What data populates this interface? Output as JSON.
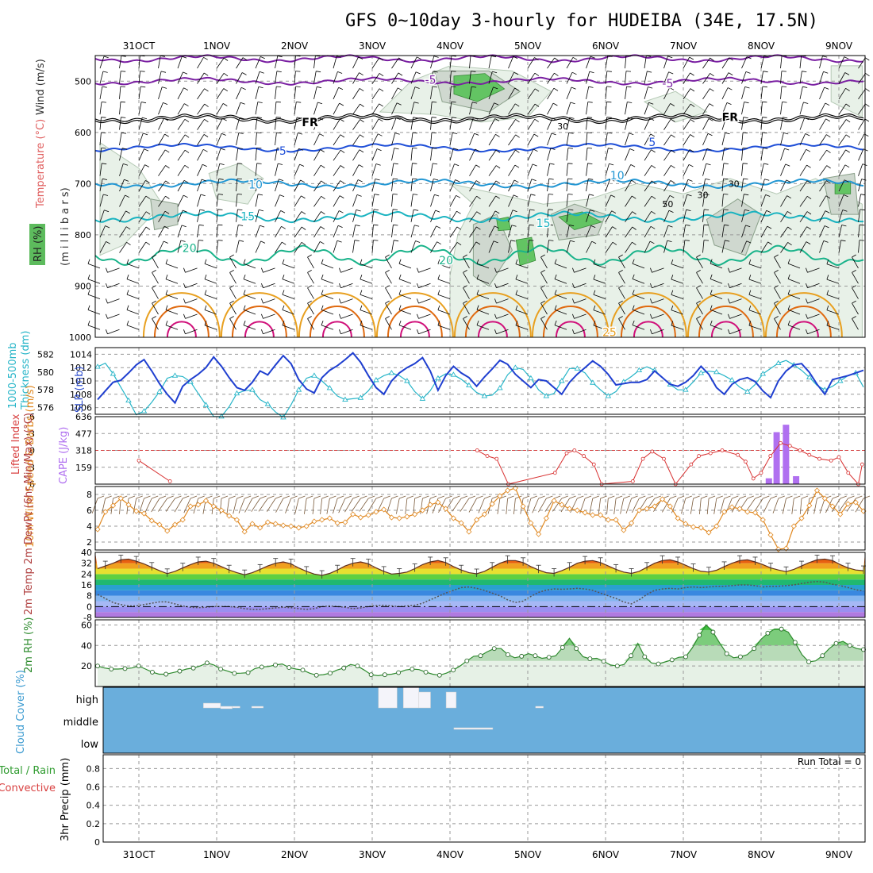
{
  "title": "GFS 0~10day 3-hourly for HUDEIBA (34E, 17.5N)",
  "dates": [
    "31OCT",
    "1NOV",
    "2NOV",
    "3NOV",
    "4NOV",
    "5NOV",
    "6NOV",
    "7NOV",
    "8NOV",
    "9NOV"
  ],
  "colors": {
    "rh_green": "#4caf50",
    "rh_grey": "#cfd8cf",
    "temp_purple": "#7a1fa2",
    "temp_blue": "#1f4fd8",
    "temp_lblue": "#2196d3",
    "temp_cyan": "#19b3c0",
    "temp_green": "#19b38a",
    "temp_orange": "#e8a020",
    "temp_dorange": "#e06a10",
    "temp_magenta": "#d0107a",
    "thickness": "#26b5c8",
    "slp": "#1f3fd0",
    "lifted": "#d83030",
    "cape": "#b070f0",
    "wind10": "#e08820",
    "rh2m": "#2e8b2e",
    "cloud": "#6aaedc"
  },
  "chart_data": [
    {
      "type": "contour",
      "name": "upper-air",
      "ylabels": [
        "Temperature (°C)",
        "Wind (m/s)",
        "RH (%)",
        "(m i l l i b a r s)"
      ],
      "yticks": [
        500,
        600,
        700,
        800,
        900,
        1000
      ],
      "ylim": [
        1000,
        450
      ],
      "isotherm_labels": [
        {
          "text": "-5",
          "day": 3.75,
          "p": 497
        },
        {
          "text": "-5",
          "day": 6.8,
          "p": 504
        },
        {
          "text": "FR",
          "day": 2.2,
          "p": 580
        },
        {
          "text": "FR",
          "day": 7.6,
          "p": 570
        },
        {
          "text": "5",
          "day": 1.85,
          "p": 636
        },
        {
          "text": "5",
          "day": 6.6,
          "p": 619
        },
        {
          "text": "10",
          "day": 6.15,
          "p": 684
        },
        {
          "text": "10",
          "day": 1.5,
          "p": 702
        },
        {
          "text": "15",
          "day": 1.4,
          "p": 764
        },
        {
          "text": "15",
          "day": 5.2,
          "p": 777
        },
        {
          "text": "20",
          "day": 0.65,
          "p": 826
        },
        {
          "text": "20",
          "day": 3.95,
          "p": 850
        },
        {
          "text": "25",
          "day": 6.05,
          "p": 990
        }
      ],
      "rh_labels": [
        {
          "text": "30",
          "day": 5.45,
          "p": 588
        },
        {
          "text": "50",
          "day": 6.8,
          "p": 740
        },
        {
          "text": "30",
          "day": 7.25,
          "p": 722
        },
        {
          "text": "30",
          "day": 7.65,
          "p": 700
        }
      ]
    },
    {
      "type": "line",
      "name": "thickness-slp",
      "ylabel_left": "Thickness (dm)",
      "ylabel_left2": "1000-500mb",
      "ylabel_right": "SLP (mb)",
      "yticks_left": [
        576,
        578,
        580,
        582
      ],
      "yticks_right": [
        1006,
        1008,
        1010,
        1012,
        1014
      ],
      "ylim_right": [
        1005,
        1015
      ],
      "series": [
        {
          "name": "SLP",
          "values": [
            1007.2,
            1008.5,
            1009.8,
            1010.1,
            1011.2,
            1012.4,
            1013.2,
            1011.5,
            1009.6,
            1008.0,
            1006.7,
            1009.2,
            1010.2,
            1011.0,
            1012.0,
            1013.6,
            1012.2,
            1010.5,
            1009.0,
            1008.6,
            1009.8,
            1011.5,
            1010.9,
            1012.4,
            1013.8,
            1012.6,
            1010.2,
            1008.8,
            1008.2,
            1010.5,
            1011.6,
            1012.3,
            1013.2,
            1014.2,
            1012.8,
            1010.8,
            1009.0,
            1008.0,
            1010.0,
            1011.2,
            1012.0,
            1012.6,
            1013.5,
            1011.5,
            1008.6,
            1010.8,
            1012.2,
            1011.2,
            1010.5,
            1009.2,
            1010.6,
            1011.8,
            1013.1,
            1012.5,
            1011.0,
            1010.0,
            1009.0,
            1010.2,
            1010.0,
            1009.0,
            1008.0,
            1009.8,
            1011.0,
            1012.0,
            1013.0,
            1012.2,
            1011.0,
            1009.4,
            1009.6,
            1009.8,
            1009.8,
            1010.2,
            1011.5,
            1010.5,
            1009.5,
            1009.2,
            1009.8,
            1010.8,
            1012.2,
            1011.0,
            1009.0,
            1008.0,
            1009.5,
            1010.2,
            1010.5,
            1009.9,
            1008.5,
            1007.5,
            1010.0,
            1011.5,
            1012.4,
            1012.6,
            1011.3,
            1009.5,
            1008.0,
            1010.2,
            1010.5,
            1010.8,
            1011.2,
            1011.6
          ]
        },
        {
          "name": "Thickness",
          "values": [
            580.6,
            581.0,
            579.8,
            578.3,
            576.8,
            575.2,
            575.6,
            576.6,
            577.8,
            579.3,
            579.6,
            579.5,
            578.9,
            577.6,
            576.3,
            575.0,
            575.0,
            576.1,
            577.6,
            577.9,
            578.0,
            576.9,
            576.4,
            575.5,
            574.9,
            576.3,
            578.0,
            579.3,
            579.6,
            579.0,
            578.2,
            577.3,
            576.9,
            577.0,
            577.1,
            577.9,
            579.1,
            579.6,
            579.9,
            579.6,
            579.0,
            577.8,
            577.0,
            577.9,
            579.3,
            579.8,
            579.7,
            579.2,
            578.5,
            577.7,
            577.3,
            577.4,
            578.2,
            579.7,
            580.5,
            580.3,
            579.3,
            578.0,
            577.3,
            577.6,
            579.0,
            580.4,
            580.4,
            579.9,
            578.8,
            578.0,
            577.3,
            577.8,
            578.9,
            579.5,
            580.2,
            580.6,
            580.2,
            579.4,
            578.6,
            578.0,
            578.0,
            578.9,
            579.9,
            580.1,
            580.0,
            579.6,
            579.1,
            578.3,
            577.8,
            578.6,
            579.8,
            580.4,
            581.0,
            581.3,
            580.8,
            580.2,
            579.4,
            578.5,
            578.0,
            578.4,
            579.0,
            579.6,
            579.9,
            578.3
          ]
        }
      ]
    },
    {
      "type": "bar-line",
      "name": "lifted-index-cape",
      "ylabel_left": "Lifted Index",
      "ylabel_right": "CAPE (J/kg)",
      "yticks_left": [
        -6,
        -3,
        0,
        3,
        6
      ],
      "yticks_right": [
        159,
        318,
        477,
        636
      ],
      "ylim_left": [
        6,
        -6
      ],
      "ylim_right": [
        0,
        636
      ],
      "lifted_index": [
        [
          0,
          1.8
        ],
        [
          0.4,
          5.5
        ],
        [
          4.35,
          0.0
        ],
        [
          4.48,
          1.0
        ],
        [
          4.6,
          1.5
        ],
        [
          4.75,
          6.0
        ],
        [
          5.35,
          4.0
        ],
        [
          5.5,
          0.5
        ],
        [
          5.6,
          0.0
        ],
        [
          5.72,
          1.0
        ],
        [
          5.85,
          2.5
        ],
        [
          5.95,
          6.0
        ],
        [
          6.35,
          5.5
        ],
        [
          6.48,
          1.5
        ],
        [
          6.6,
          0.2
        ],
        [
          6.75,
          1.5
        ],
        [
          6.9,
          6.0
        ],
        [
          7.1,
          2.5
        ],
        [
          7.2,
          1.0
        ],
        [
          7.35,
          0.5
        ],
        [
          7.5,
          0.0
        ],
        [
          7.7,
          0.8
        ],
        [
          7.8,
          2.0
        ],
        [
          7.9,
          5.0
        ],
        [
          8.0,
          4.0
        ],
        [
          8.12,
          1.0
        ],
        [
          8.25,
          -1.3
        ],
        [
          8.37,
          -0.8
        ],
        [
          8.5,
          0.0
        ],
        [
          8.62,
          0.8
        ],
        [
          8.75,
          1.5
        ],
        [
          8.9,
          1.8
        ],
        [
          9.0,
          1.2
        ],
        [
          9.12,
          4.0
        ],
        [
          9.25,
          6.0
        ],
        [
          9.3,
          2.5
        ]
      ],
      "cape_bars": [
        [
          8.1,
          55
        ],
        [
          8.2,
          490
        ],
        [
          8.32,
          560
        ],
        [
          8.45,
          75
        ]
      ]
    },
    {
      "type": "line",
      "name": "wind10m",
      "ylabel": "10m Wind Speed & Barbs (m/s)",
      "yticks": [
        2,
        4,
        6,
        8
      ],
      "ylim": [
        1,
        9
      ],
      "values": [
        3.6,
        5.8,
        6.6,
        7.5,
        6.7,
        5.9,
        5.6,
        4.7,
        4.2,
        3.4,
        4.2,
        4.8,
        6.5,
        6.7,
        7.2,
        6.5,
        6.0,
        5.3,
        4.8,
        3.3,
        4.3,
        3.8,
        4.5,
        4.3,
        4.1,
        4.0,
        3.8,
        4.0,
        4.6,
        4.8,
        5.0,
        4.4,
        4.5,
        5.5,
        5.1,
        5.4,
        5.8,
        6.1,
        5.1,
        5.0,
        5.2,
        5.5,
        6.0,
        6.7,
        7.0,
        6.2,
        5.0,
        4.4,
        3.3,
        4.8,
        5.5,
        6.8,
        7.8,
        8.5,
        8.8,
        6.5,
        4.4,
        3.0,
        5.0,
        7.2,
        6.7,
        6.2,
        6.0,
        5.7,
        5.4,
        5.4,
        4.8,
        4.8,
        3.5,
        4.4,
        6.0,
        6.2,
        6.5,
        7.4,
        6.5,
        5.0,
        4.3,
        3.9,
        3.8,
        3.2,
        4.0,
        5.8,
        6.4,
        6.2,
        5.8,
        5.7,
        4.8,
        2.9,
        1.1,
        1.2,
        4.0,
        5.0,
        6.6,
        8.5,
        7.5,
        6.5,
        5.5,
        6.8,
        7.0,
        5.9
      ]
    },
    {
      "type": "area",
      "name": "temp2m",
      "ylabel": "2m Temp 2m DewPt (6hr Min/Max) (°C)",
      "yticks": [
        -8,
        0,
        8,
        16,
        24,
        32,
        40
      ],
      "ylim": [
        -8,
        40
      ],
      "temperature": [
        28,
        30,
        32,
        34.5,
        35,
        33.5,
        31.5,
        29,
        26.5,
        24.3,
        26,
        28.5,
        31,
        33,
        33.5,
        32,
        29.5,
        27,
        25,
        23.5,
        25,
        27.5,
        30,
        32,
        33,
        31.5,
        28.5,
        26,
        24,
        23,
        24.5,
        27,
        30,
        32,
        33,
        31.5,
        28.5,
        26,
        24,
        24.5,
        25.5,
        28,
        31,
        33,
        34,
        32.5,
        29.5,
        27,
        25,
        24.2,
        26,
        29,
        32,
        34,
        34,
        32.5,
        29.5,
        27,
        25,
        24.5,
        26.5,
        29,
        32,
        33.5,
        34,
        32.5,
        30,
        27.5,
        25.5,
        24.5,
        26,
        29,
        32,
        34,
        34.5,
        33,
        30.5,
        28,
        26,
        25.5,
        26.8,
        29.5,
        32,
        34,
        34.5,
        33,
        31,
        28.5,
        27,
        25.8,
        27.5,
        30,
        32.5,
        34.5,
        35,
        34,
        31,
        28.5,
        27,
        26.5
      ],
      "dewpoint": [
        9,
        6,
        3,
        1.5,
        0.5,
        0.5,
        1.5,
        2.5,
        3.5,
        3.5,
        2,
        0.5,
        -0.5,
        -0.8,
        -0.5,
        0,
        0,
        0,
        -0.5,
        -1.5,
        -2,
        -2,
        -1.5,
        -1,
        -0.5,
        -0.8,
        -1.5,
        -2,
        -1.5,
        0,
        0.5,
        0,
        -0.5,
        -1.5,
        -1,
        0,
        0.8,
        1,
        0.5,
        0,
        0.5,
        1,
        2.5,
        5,
        7.5,
        10,
        12,
        14,
        14.5,
        13.5,
        12,
        10,
        8,
        5,
        3,
        4,
        7.5,
        10.5,
        12.2,
        13,
        12.8,
        13,
        13.5,
        13,
        12,
        10,
        8,
        6,
        3.5,
        2,
        5,
        9,
        12,
        13,
        13.5,
        13,
        14,
        14.5,
        14,
        14.5,
        15,
        15,
        15.5,
        16,
        16,
        15.5,
        14.5,
        15,
        15,
        15.5,
        16,
        17,
        18,
        18.5,
        18,
        16.5,
        15.5,
        14,
        12.5,
        11.5
      ]
    },
    {
      "type": "area",
      "name": "rh2m",
      "ylabel": "2m RH (%)",
      "yticks": [
        20,
        40,
        60
      ],
      "ylim": [
        0,
        65
      ],
      "values": [
        20,
        18,
        17,
        17,
        17.5,
        18,
        20,
        17,
        14,
        12,
        12,
        13.5,
        15,
        17,
        18,
        20,
        23,
        21,
        17,
        15,
        12.8,
        13,
        13.5,
        17.5,
        19,
        19.5,
        21,
        22,
        18.5,
        17,
        16,
        13,
        11,
        11.5,
        13,
        16,
        18,
        21.5,
        20,
        16,
        11.5,
        10.5,
        11.5,
        12,
        13.5,
        16,
        17,
        16.5,
        14,
        12,
        11,
        13,
        16,
        20,
        25,
        29.5,
        30,
        34,
        37,
        37,
        31,
        28,
        29.5,
        32,
        30,
        27.5,
        28.5,
        30,
        38,
        47,
        37,
        29,
        27,
        27.5,
        24.5,
        21,
        20,
        21.5,
        30,
        42,
        29,
        23,
        22,
        24,
        26,
        28.5,
        29,
        38,
        50,
        60,
        53,
        42,
        32,
        28,
        29,
        31,
        37,
        46,
        52,
        56,
        56,
        53,
        43,
        31,
        24,
        25,
        30,
        37,
        42,
        44,
        40,
        37,
        36
      ]
    },
    {
      "type": "bar",
      "name": "cloud-cover",
      "ylabel": "Cloud Cover (%)",
      "levels": [
        "high",
        "middle",
        "low"
      ]
    },
    {
      "type": "bar",
      "name": "precip",
      "ylabel": "3hr Precip (mm)",
      "ylabel2": "Total / Rain",
      "ylabel3": "Convective",
      "yticks": [
        0,
        0.2,
        0.4,
        0.6,
        0.8
      ],
      "ylim": [
        0,
        0.95
      ],
      "run_total": "Run Total = 0"
    }
  ]
}
